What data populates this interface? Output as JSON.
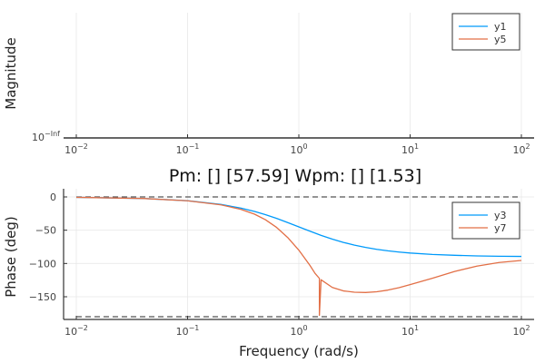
{
  "chart_data": [
    {
      "type": "line",
      "panel": "magnitude",
      "title": "",
      "xlabel": "",
      "ylabel": "Magnitude",
      "x_scale": "log",
      "xlim": [
        0.01,
        100
      ],
      "x_ticks": [
        0.01,
        0.1,
        1,
        10,
        100
      ],
      "x_tick_labels": [
        {
          "base": "10",
          "exp": "−2"
        },
        {
          "base": "10",
          "exp": "−1"
        },
        {
          "base": "10",
          "exp": "0"
        },
        {
          "base": "10",
          "exp": "1"
        },
        {
          "base": "10",
          "exp": "2"
        }
      ],
      "y_tick_labels": [
        {
          "base": "10",
          "exp": "−Inf"
        }
      ],
      "grid": true,
      "legend_position": "top-right",
      "series": [
        {
          "name": "y1",
          "color": "#009AFA",
          "x": [],
          "y": []
        },
        {
          "name": "y5",
          "color": "#E26F46",
          "x": [],
          "y": []
        }
      ]
    },
    {
      "type": "line",
      "panel": "phase",
      "title": "Pm: [] [57.59]  Wpm: [] [1.53]",
      "xlabel": "Frequency (rad/s)",
      "ylabel": "Phase (deg)",
      "x_scale": "log",
      "xlim": [
        0.01,
        100
      ],
      "ylim": [
        -185,
        5
      ],
      "x_ticks": [
        0.01,
        0.1,
        1,
        10,
        100
      ],
      "x_tick_labels": [
        {
          "base": "10",
          "exp": "−2"
        },
        {
          "base": "10",
          "exp": "−1"
        },
        {
          "base": "10",
          "exp": "0"
        },
        {
          "base": "10",
          "exp": "1"
        },
        {
          "base": "10",
          "exp": "2"
        }
      ],
      "y_ticks": [
        0,
        -50,
        -100,
        -150
      ],
      "y_tick_labels": [
        "0",
        "−50",
        "−100",
        "−150"
      ],
      "grid": true,
      "legend_position": "top-right",
      "reference_lines": [
        {
          "y": 0,
          "style": "dashed",
          "color": "#555555"
        },
        {
          "y": -180,
          "style": "dashed",
          "color": "#555555"
        }
      ],
      "series": [
        {
          "name": "y3",
          "color": "#009AFA",
          "x": [
            0.01,
            0.0398,
            0.1,
            0.2,
            0.3,
            0.4,
            0.5,
            0.631,
            0.794,
            1,
            1.259,
            1.585,
            2,
            2.512,
            3.162,
            3.981,
            5.012,
            6.31,
            7.943,
            10,
            15.85,
            25.12,
            39.81,
            63.1,
            100
          ],
          "y": [
            -0.6,
            -2.3,
            -5.7,
            -11.3,
            -16.7,
            -21.8,
            -26.6,
            -32.2,
            -38.5,
            -45,
            -51.5,
            -57.8,
            -63.4,
            -68.3,
            -72.5,
            -75.9,
            -78.7,
            -81,
            -82.8,
            -84.3,
            -86.4,
            -87.7,
            -88.6,
            -89.1,
            -89.4
          ]
        },
        {
          "name": "y7",
          "color": "#E26F46",
          "x": [
            0.01,
            0.0398,
            0.1,
            0.2,
            0.3,
            0.4,
            0.5,
            0.631,
            0.794,
            1,
            1.259,
            1.4,
            1.53,
            1.53,
            1.585,
            2,
            2.512,
            3.162,
            3.981,
            5.012,
            6.31,
            7.943,
            10,
            15.85,
            25.12,
            39.81,
            63.1,
            100
          ],
          "y": [
            -0.6,
            -2.3,
            -5.8,
            -11.9,
            -18.6,
            -25.9,
            -34.2,
            -45.8,
            -61,
            -80,
            -103,
            -115,
            -122.4,
            -178,
            -124.5,
            -136,
            -141.2,
            -143.2,
            -143.6,
            -142.5,
            -140,
            -136.3,
            -131.8,
            -122.2,
            -112,
            -104,
            -98.5,
            -95.5
          ]
        }
      ]
    }
  ]
}
